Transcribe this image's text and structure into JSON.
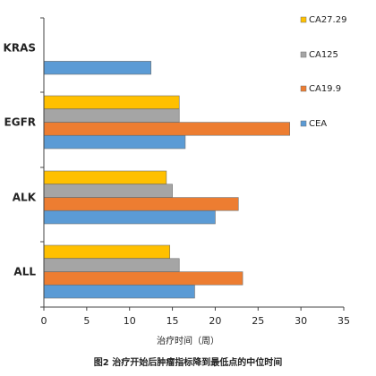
{
  "chart_data": {
    "type": "bar",
    "orientation": "horizontal",
    "categories": [
      "KRAS",
      "EGFR",
      "ALK",
      "ALL"
    ],
    "series": [
      {
        "name": "CA27.29",
        "color": "#FFC000",
        "values": [
          null,
          15.8,
          14.3,
          14.7
        ]
      },
      {
        "name": "CA125",
        "color": "#A5A5A5",
        "values": [
          null,
          15.8,
          15.0,
          15.8
        ]
      },
      {
        "name": "CA19.9",
        "color": "#ED7D31",
        "values": [
          null,
          28.7,
          22.7,
          23.2
        ]
      },
      {
        "name": "CEA",
        "color": "#5B9BD5",
        "values": [
          12.5,
          16.5,
          20.0,
          17.6
        ]
      }
    ],
    "xlim": [
      0,
      35
    ],
    "xticks": [
      "0",
      "5",
      "10",
      "15",
      "20",
      "25",
      "30",
      "35"
    ],
    "xlabel": "治疗时间（周）",
    "caption": "图2 治疗开始后肿瘤指标降到最低点的中位时间",
    "legend_position": "right",
    "grid": false
  }
}
